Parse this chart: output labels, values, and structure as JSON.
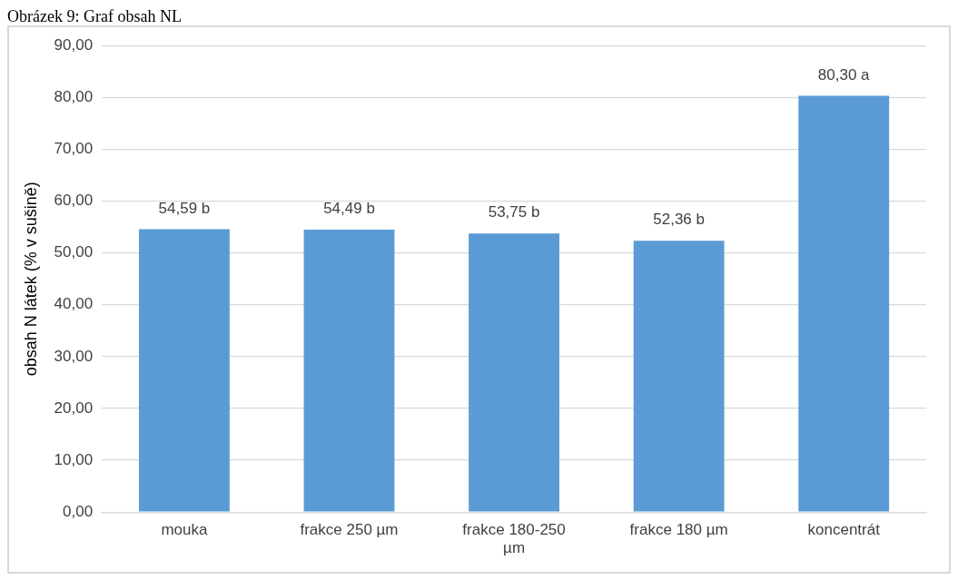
{
  "chart_data": {
    "type": "bar",
    "title": "Obrázek 9: Graf obsah NL",
    "ylabel": "obsah N látek (% v sušině)",
    "categories": [
      "mouka",
      "frakce 250 µm",
      "frakce 180-250 µm",
      "frakce 180 µm",
      "koncentrát"
    ],
    "values": [
      54.59,
      54.49,
      53.75,
      52.36,
      80.3
    ],
    "color": "#5b9bd5",
    "value_labels": [
      "54,59 b",
      "54,49 b",
      "53,75 b",
      "52,36 b",
      "80,30 a"
    ],
    "ylim": [
      0,
      90
    ],
    "yticks": [
      {
        "value": 0,
        "label": "0,00"
      },
      {
        "value": 10,
        "label": "10,00"
      },
      {
        "value": 20,
        "label": "20,00"
      },
      {
        "value": 30,
        "label": "30,00"
      },
      {
        "value": 40,
        "label": "40,00"
      },
      {
        "value": 50,
        "label": "50,00"
      },
      {
        "value": 60,
        "label": "60,00"
      },
      {
        "value": 70,
        "label": "70,00"
      },
      {
        "value": 80,
        "label": "80,00"
      },
      {
        "value": 90,
        "label": "90,00"
      }
    ],
    "grid": "y",
    "legend": false
  }
}
